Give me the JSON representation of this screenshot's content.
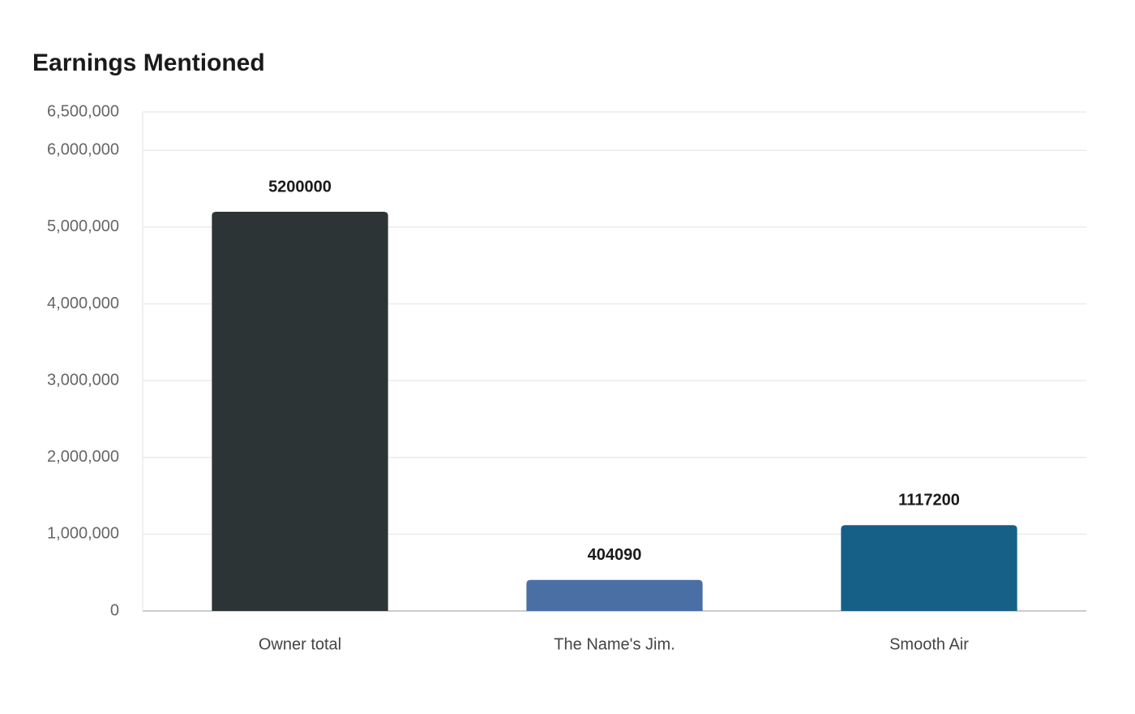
{
  "chart_data": {
    "type": "bar",
    "title": "Earnings Mentioned",
    "categories": [
      "Owner total",
      "The Name's Jim.",
      "Smooth Air"
    ],
    "values": [
      5200000,
      404090,
      1117200
    ],
    "colors": [
      "#2d3436",
      "#4a6fa5",
      "#166088"
    ],
    "ylim": [
      0,
      6500000
    ],
    "yticks": [
      0,
      {
        "value": 1000000,
        "label": "1,000,000"
      },
      {
        "value": 2000000,
        "label": "2,000,000"
      },
      {
        "value": 3000000,
        "label": "3,000,000"
      },
      {
        "value": 4000000,
        "label": "4,000,000"
      },
      {
        "value": 5000000,
        "label": "5,000,000"
      },
      {
        "value": 6000000,
        "label": "6,000,000"
      },
      {
        "value": 6500000,
        "label": "6,500,000"
      }
    ],
    "grid": true
  }
}
